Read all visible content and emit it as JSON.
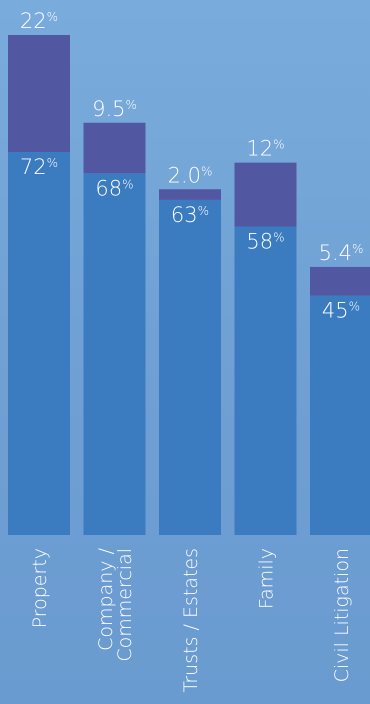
{
  "chart_data": {
    "type": "bar",
    "stacked": true,
    "categories": [
      "Property",
      "Company / Commercial",
      "Trusts / Estates",
      "Family",
      "Civil Litigation"
    ],
    "category_lines": [
      [
        "Property"
      ],
      [
        "Company /",
        "Commercial"
      ],
      [
        "Trusts / Estates"
      ],
      [
        "Family"
      ],
      [
        "Civil Litigation"
      ]
    ],
    "series": [
      {
        "values": [
          72,
          68,
          63,
          58,
          45
        ],
        "labels": [
          "72",
          "68",
          "63",
          "58",
          "45"
        ]
      },
      {
        "values": [
          22,
          9.5,
          2.0,
          12,
          5.4
        ],
        "labels": [
          "22",
          "9.5",
          "2.0",
          "12",
          "5.4"
        ]
      }
    ],
    "unit_symbol": "%",
    "ylim": [
      0,
      100
    ],
    "grid": false,
    "legend": "none",
    "colors": {
      "base": "#3b7cc0",
      "top": "#5257a2",
      "text": "#ffffff"
    }
  }
}
